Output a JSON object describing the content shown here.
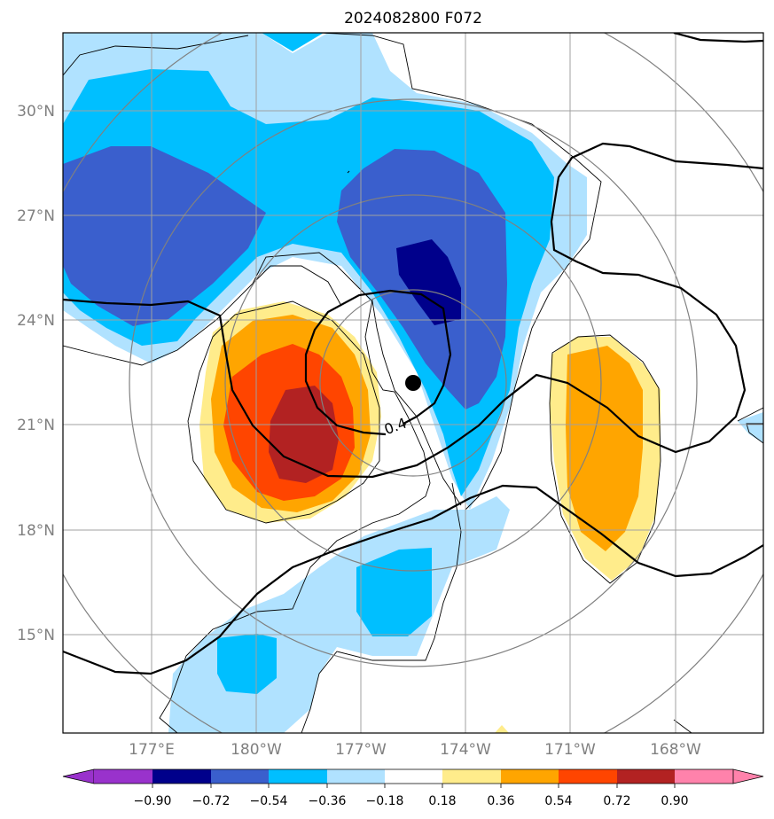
{
  "title": "2024082800 F072",
  "latitudes": [
    {
      "label": "30°N",
      "value": 30
    },
    {
      "label": "27°N",
      "value": 27
    },
    {
      "label": "24°N",
      "value": 24
    },
    {
      "label": "21°N",
      "value": 21
    },
    {
      "label": "18°N",
      "value": 18
    },
    {
      "label": "15°N",
      "value": 15
    }
  ],
  "longitudes": [
    {
      "label": "177°E",
      "value": 177
    },
    {
      "label": "180°W",
      "value": 180
    },
    {
      "label": "177°W",
      "value": 183
    },
    {
      "label": "174°W",
      "value": 186
    },
    {
      "label": "171°W",
      "value": 189
    },
    {
      "label": "168°W",
      "value": 192
    }
  ],
  "contour_label": "0.4",
  "colorbar": {
    "ticks": [
      "−0.90",
      "−0.72",
      "−0.54",
      "−0.36",
      "−0.18",
      "0.18",
      "0.36",
      "0.54",
      "0.72",
      "0.90"
    ],
    "colors": [
      "#9932cc",
      "#00008b",
      "#3a5fcd",
      "#00bfff",
      "#b0e2ff",
      "#ffffff",
      "#ffec8b",
      "#ffa500",
      "#ff4500",
      "#b22222",
      "#ff82ab"
    ]
  },
  "colors": {
    "dark_blue": "#00008b",
    "blue": "#3a5fcd",
    "cyan": "#00bfff",
    "light_blue": "#b0e2ff",
    "yellow": "#ffec8b",
    "orange": "#ffa500",
    "red_orange": "#ff4500",
    "dark_red": "#b22222"
  },
  "storm_marker": {
    "lat": 22.2,
    "lon": 185.4
  }
}
